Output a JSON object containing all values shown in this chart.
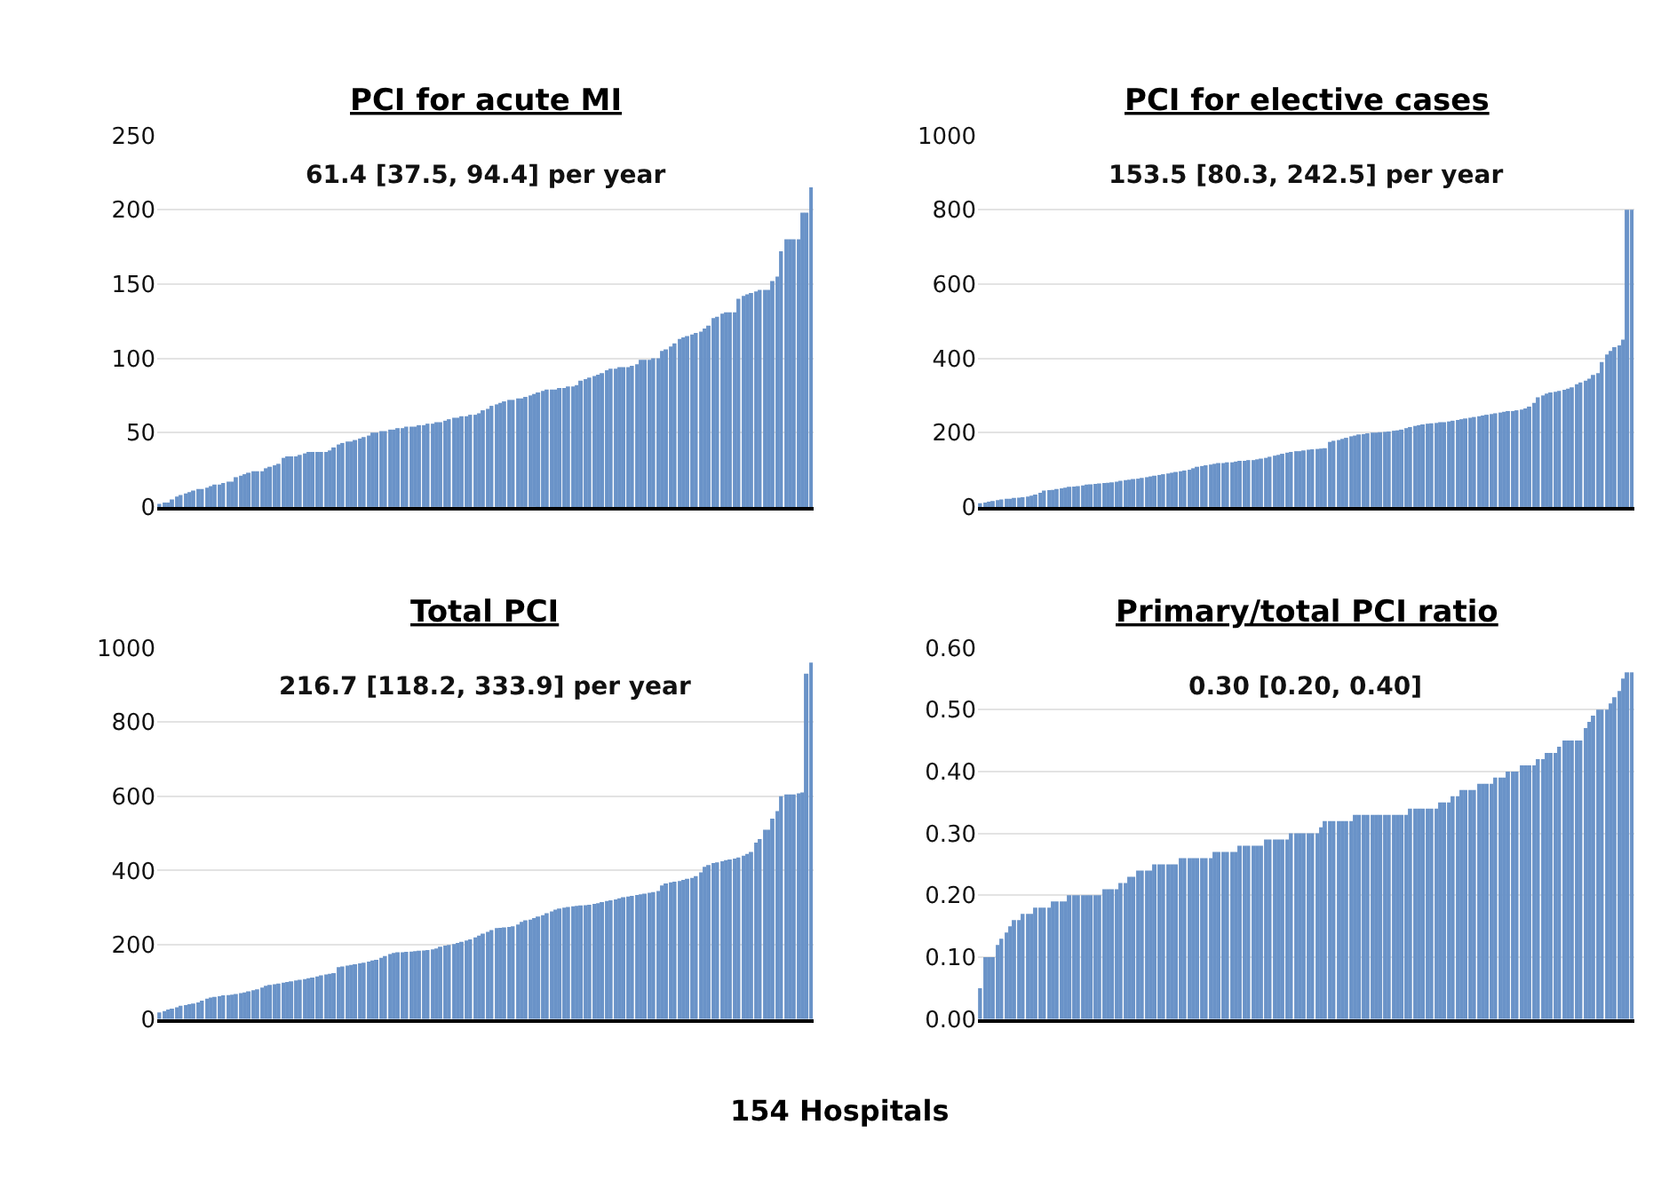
{
  "chart_data": [
    {
      "type": "bar",
      "title": "PCI for acute MI",
      "subtitle": "61.4 [37.5, 94.4] per year",
      "color": "#6a93c8",
      "ylim": [
        0,
        250
      ],
      "yticks": [
        0,
        50,
        100,
        150,
        200,
        250
      ],
      "grid": "y",
      "tick_labels": "y",
      "categories": [
        null,
        null,
        null,
        null,
        null,
        null,
        null,
        null,
        null,
        null,
        null,
        null,
        null,
        null,
        null,
        null,
        null,
        null,
        null,
        null,
        null,
        null,
        null,
        null,
        null,
        null,
        null,
        null,
        null,
        null,
        null,
        null,
        null,
        null,
        null,
        null,
        null,
        null,
        null,
        null,
        null,
        null,
        null,
        null,
        null,
        null,
        null,
        null,
        null,
        null,
        null,
        null,
        null,
        null,
        null,
        null,
        null,
        null,
        null,
        null,
        null,
        null,
        null,
        null,
        null,
        null,
        null,
        null,
        null,
        null,
        null,
        null,
        null,
        null,
        null,
        null,
        null,
        null,
        null,
        null,
        null,
        null,
        null,
        null,
        null,
        null,
        null,
        null,
        null,
        null,
        null,
        null,
        null,
        null,
        null,
        null,
        null,
        null,
        null,
        null,
        null,
        null,
        null,
        null,
        null,
        null,
        null,
        null,
        null,
        null,
        null,
        null,
        null,
        null,
        null,
        null,
        null,
        null,
        null,
        null,
        null,
        null,
        null,
        null,
        null,
        null,
        null,
        null,
        null,
        null,
        null,
        null,
        null,
        null,
        null,
        null,
        null,
        null,
        null,
        null,
        null,
        null,
        null,
        null,
        null,
        null,
        null,
        null,
        null,
        null,
        null,
        null,
        null,
        null
      ],
      "values": [
        2,
        3,
        3,
        5,
        7,
        8,
        9,
        10,
        11,
        12,
        12,
        13,
        14,
        15,
        15,
        16,
        17,
        17,
        20,
        21,
        22,
        23,
        24,
        24,
        24,
        26,
        27,
        28,
        29,
        33,
        34,
        34,
        34,
        35,
        36,
        37,
        37,
        37,
        37,
        37,
        38,
        40,
        42,
        43,
        44,
        44,
        45,
        46,
        47,
        48,
        50,
        50,
        51,
        51,
        52,
        52,
        53,
        53,
        54,
        54,
        54,
        55,
        55,
        56,
        56,
        57,
        57,
        58,
        59,
        60,
        60,
        61,
        61,
        62,
        62,
        63,
        65,
        66,
        68,
        69,
        70,
        71,
        72,
        72,
        73,
        73,
        74,
        75,
        76,
        77,
        78,
        79,
        79,
        79,
        80,
        80,
        81,
        81,
        82,
        85,
        86,
        87,
        88,
        89,
        90,
        92,
        93,
        93,
        94,
        94,
        94,
        95,
        96,
        99,
        99,
        99,
        100,
        100,
        105,
        106,
        108,
        110,
        113,
        114,
        115,
        116,
        117,
        118,
        120,
        122,
        127,
        128,
        130,
        131,
        131,
        131,
        140,
        142,
        143,
        144,
        145,
        146,
        146,
        146,
        152,
        155,
        172,
        180,
        180,
        180,
        180,
        198,
        198,
        215
      ]
    },
    {
      "type": "bar",
      "title": "PCI for elective cases",
      "subtitle": "153.5 [80.3, 242.5] per year",
      "color": "#6a93c8",
      "ylim": [
        0,
        1000
      ],
      "yticks": [
        0,
        200,
        400,
        600,
        800,
        1000
      ],
      "grid": "y",
      "tick_labels": "y",
      "categories": [
        null,
        null,
        null,
        null,
        null,
        null,
        null,
        null,
        null,
        null,
        null,
        null,
        null,
        null,
        null,
        null,
        null,
        null,
        null,
        null,
        null,
        null,
        null,
        null,
        null,
        null,
        null,
        null,
        null,
        null,
        null,
        null,
        null,
        null,
        null,
        null,
        null,
        null,
        null,
        null,
        null,
        null,
        null,
        null,
        null,
        null,
        null,
        null,
        null,
        null,
        null,
        null,
        null,
        null,
        null,
        null,
        null,
        null,
        null,
        null,
        null,
        null,
        null,
        null,
        null,
        null,
        null,
        null,
        null,
        null,
        null,
        null,
        null,
        null,
        null,
        null,
        null,
        null,
        null,
        null,
        null,
        null,
        null,
        null,
        null,
        null,
        null,
        null,
        null,
        null,
        null,
        null,
        null,
        null,
        null,
        null,
        null,
        null,
        null,
        null,
        null,
        null,
        null,
        null,
        null,
        null,
        null,
        null,
        null,
        null,
        null,
        null,
        null,
        null,
        null,
        null,
        null,
        null,
        null,
        null,
        null,
        null,
        null,
        null,
        null,
        null,
        null,
        null,
        null,
        null,
        null,
        null,
        null,
        null,
        null,
        null,
        null,
        null,
        null,
        null,
        null,
        null,
        null,
        null,
        null,
        null,
        null,
        null,
        null,
        null,
        null,
        null,
        null,
        null
      ],
      "values": [
        10,
        12,
        14,
        16,
        18,
        20,
        22,
        22,
        24,
        25,
        26,
        28,
        30,
        33,
        38,
        44,
        45,
        46,
        48,
        50,
        52,
        54,
        55,
        56,
        58,
        60,
        61,
        62,
        63,
        64,
        65,
        66,
        68,
        70,
        72,
        73,
        75,
        76,
        78,
        80,
        82,
        84,
        86,
        88,
        90,
        92,
        94,
        96,
        98,
        100,
        104,
        108,
        110,
        112,
        114,
        116,
        118,
        118,
        120,
        120,
        122,
        124,
        124,
        126,
        126,
        128,
        130,
        132,
        135,
        138,
        140,
        143,
        146,
        148,
        150,
        150,
        152,
        154,
        155,
        156,
        157,
        158,
        175,
        178,
        180,
        183,
        186,
        190,
        192,
        195,
        196,
        198,
        200,
        200,
        201,
        202,
        203,
        205,
        206,
        208,
        212,
        215,
        218,
        220,
        222,
        224,
        225,
        226,
        228,
        228,
        230,
        232,
        234,
        236,
        238,
        240,
        242,
        244,
        246,
        248,
        250,
        252,
        254,
        256,
        258,
        258,
        260,
        262,
        265,
        270,
        280,
        295,
        300,
        305,
        308,
        310,
        312,
        315,
        318,
        322,
        330,
        335,
        340,
        345,
        355,
        360,
        390,
        410,
        420,
        430,
        435,
        450,
        800,
        800
      ]
    },
    {
      "type": "bar",
      "title": "Total PCI",
      "subtitle": "216.7 [118.2, 333.9] per year",
      "xlabel": "154 Hospitals",
      "color": "#6a93c8",
      "ylim": [
        0,
        1000
      ],
      "yticks": [
        0,
        200,
        400,
        600,
        800,
        1000
      ],
      "grid": "y",
      "tick_labels": "y",
      "categories": [
        null,
        null,
        null,
        null,
        null,
        null,
        null,
        null,
        null,
        null,
        null,
        null,
        null,
        null,
        null,
        null,
        null,
        null,
        null,
        null,
        null,
        null,
        null,
        null,
        null,
        null,
        null,
        null,
        null,
        null,
        null,
        null,
        null,
        null,
        null,
        null,
        null,
        null,
        null,
        null,
        null,
        null,
        null,
        null,
        null,
        null,
        null,
        null,
        null,
        null,
        null,
        null,
        null,
        null,
        null,
        null,
        null,
        null,
        null,
        null,
        null,
        null,
        null,
        null,
        null,
        null,
        null,
        null,
        null,
        null,
        null,
        null,
        null,
        null,
        null,
        null,
        null,
        null,
        null,
        null,
        null,
        null,
        null,
        null,
        null,
        null,
        null,
        null,
        null,
        null,
        null,
        null,
        null,
        null,
        null,
        null,
        null,
        null,
        null,
        null,
        null,
        null,
        null,
        null,
        null,
        null,
        null,
        null,
        null,
        null,
        null,
        null,
        null,
        null,
        null,
        null,
        null,
        null,
        null,
        null,
        null,
        null,
        null,
        null,
        null,
        null,
        null,
        null,
        null,
        null,
        null,
        null,
        null,
        null,
        null,
        null,
        null,
        null,
        null,
        null,
        null,
        null,
        null,
        null,
        null,
        null,
        null,
        null,
        null,
        null,
        null,
        null,
        null,
        null
      ],
      "values": [
        18,
        22,
        26,
        28,
        32,
        36,
        38,
        40,
        42,
        45,
        50,
        55,
        58,
        60,
        62,
        64,
        65,
        66,
        68,
        70,
        72,
        75,
        78,
        80,
        85,
        90,
        92,
        94,
        96,
        98,
        100,
        102,
        104,
        106,
        108,
        110,
        112,
        115,
        118,
        120,
        122,
        124,
        140,
        142,
        144,
        146,
        148,
        150,
        152,
        155,
        158,
        160,
        165,
        170,
        175,
        178,
        180,
        180,
        181,
        182,
        183,
        184,
        185,
        186,
        188,
        190,
        195,
        198,
        200,
        202,
        205,
        208,
        212,
        215,
        220,
        225,
        230,
        235,
        240,
        245,
        246,
        247,
        248,
        250,
        255,
        262,
        266,
        268,
        272,
        276,
        280,
        285,
        290,
        295,
        298,
        300,
        302,
        304,
        305,
        306,
        307,
        308,
        310,
        312,
        315,
        318,
        320,
        322,
        325,
        328,
        330,
        332,
        334,
        336,
        338,
        340,
        342,
        345,
        360,
        365,
        368,
        370,
        372,
        375,
        378,
        380,
        385,
        395,
        410,
        415,
        420,
        422,
        425,
        428,
        430,
        432,
        435,
        440,
        445,
        450,
        475,
        485,
        510,
        510,
        540,
        560,
        600,
        605,
        605,
        605,
        608,
        610,
        930,
        960
      ]
    },
    {
      "type": "bar",
      "title": "Primary/total PCI ratio",
      "subtitle": "0.30 [0.20, 0.40]",
      "color": "#6a93c8",
      "ylim": [
        0,
        0.6
      ],
      "yticks": [
        {
          "value": 0,
          "label": "0.00"
        },
        {
          "value": 0.1,
          "label": "0.10"
        },
        {
          "value": 0.2,
          "label": "0.20"
        },
        {
          "value": 0.3,
          "label": "0.30"
        },
        {
          "value": 0.4,
          "label": "0.40"
        },
        {
          "value": 0.5,
          "label": "0.50"
        },
        {
          "value": 0.6,
          "label": "0.60"
        }
      ],
      "grid": "y",
      "tick_labels": "y",
      "categories": [
        null,
        null,
        null,
        null,
        null,
        null,
        null,
        null,
        null,
        null,
        null,
        null,
        null,
        null,
        null,
        null,
        null,
        null,
        null,
        null,
        null,
        null,
        null,
        null,
        null,
        null,
        null,
        null,
        null,
        null,
        null,
        null,
        null,
        null,
        null,
        null,
        null,
        null,
        null,
        null,
        null,
        null,
        null,
        null,
        null,
        null,
        null,
        null,
        null,
        null,
        null,
        null,
        null,
        null,
        null,
        null,
        null,
        null,
        null,
        null,
        null,
        null,
        null,
        null,
        null,
        null,
        null,
        null,
        null,
        null,
        null,
        null,
        null,
        null,
        null,
        null,
        null,
        null,
        null,
        null,
        null,
        null,
        null,
        null,
        null,
        null,
        null,
        null,
        null,
        null,
        null,
        null,
        null,
        null,
        null,
        null,
        null,
        null,
        null,
        null,
        null,
        null,
        null,
        null,
        null,
        null,
        null,
        null,
        null,
        null,
        null,
        null,
        null,
        null,
        null,
        null,
        null,
        null,
        null,
        null,
        null,
        null,
        null,
        null,
        null,
        null,
        null,
        null,
        null,
        null,
        null,
        null,
        null,
        null,
        null,
        null,
        null,
        null,
        null,
        null,
        null,
        null,
        null,
        null,
        null,
        null,
        null,
        null,
        null,
        null,
        null,
        null,
        null,
        null
      ],
      "values": [
        0.05,
        0.1,
        0.1,
        0.1,
        0.12,
        0.13,
        0.14,
        0.15,
        0.16,
        0.16,
        0.17,
        0.17,
        0.17,
        0.18,
        0.18,
        0.18,
        0.18,
        0.19,
        0.19,
        0.19,
        0.19,
        0.2,
        0.2,
        0.2,
        0.2,
        0.2,
        0.2,
        0.2,
        0.2,
        0.21,
        0.21,
        0.21,
        0.21,
        0.22,
        0.22,
        0.23,
        0.23,
        0.24,
        0.24,
        0.24,
        0.24,
        0.25,
        0.25,
        0.25,
        0.25,
        0.25,
        0.25,
        0.26,
        0.26,
        0.26,
        0.26,
        0.26,
        0.26,
        0.26,
        0.26,
        0.27,
        0.27,
        0.27,
        0.27,
        0.27,
        0.27,
        0.28,
        0.28,
        0.28,
        0.28,
        0.28,
        0.28,
        0.29,
        0.29,
        0.29,
        0.29,
        0.29,
        0.29,
        0.3,
        0.3,
        0.3,
        0.3,
        0.3,
        0.3,
        0.3,
        0.31,
        0.32,
        0.32,
        0.32,
        0.32,
        0.32,
        0.32,
        0.32,
        0.33,
        0.33,
        0.33,
        0.33,
        0.33,
        0.33,
        0.33,
        0.33,
        0.33,
        0.33,
        0.33,
        0.33,
        0.33,
        0.34,
        0.34,
        0.34,
        0.34,
        0.34,
        0.34,
        0.34,
        0.35,
        0.35,
        0.35,
        0.36,
        0.36,
        0.37,
        0.37,
        0.37,
        0.37,
        0.38,
        0.38,
        0.38,
        0.38,
        0.39,
        0.39,
        0.39,
        0.4,
        0.4,
        0.4,
        0.41,
        0.41,
        0.41,
        0.41,
        0.42,
        0.42,
        0.43,
        0.43,
        0.43,
        0.44,
        0.45,
        0.45,
        0.45,
        0.45,
        0.45,
        0.47,
        0.48,
        0.49,
        0.5,
        0.5,
        0.5,
        0.51,
        0.52,
        0.53,
        0.55,
        0.56,
        0.56
      ]
    }
  ]
}
